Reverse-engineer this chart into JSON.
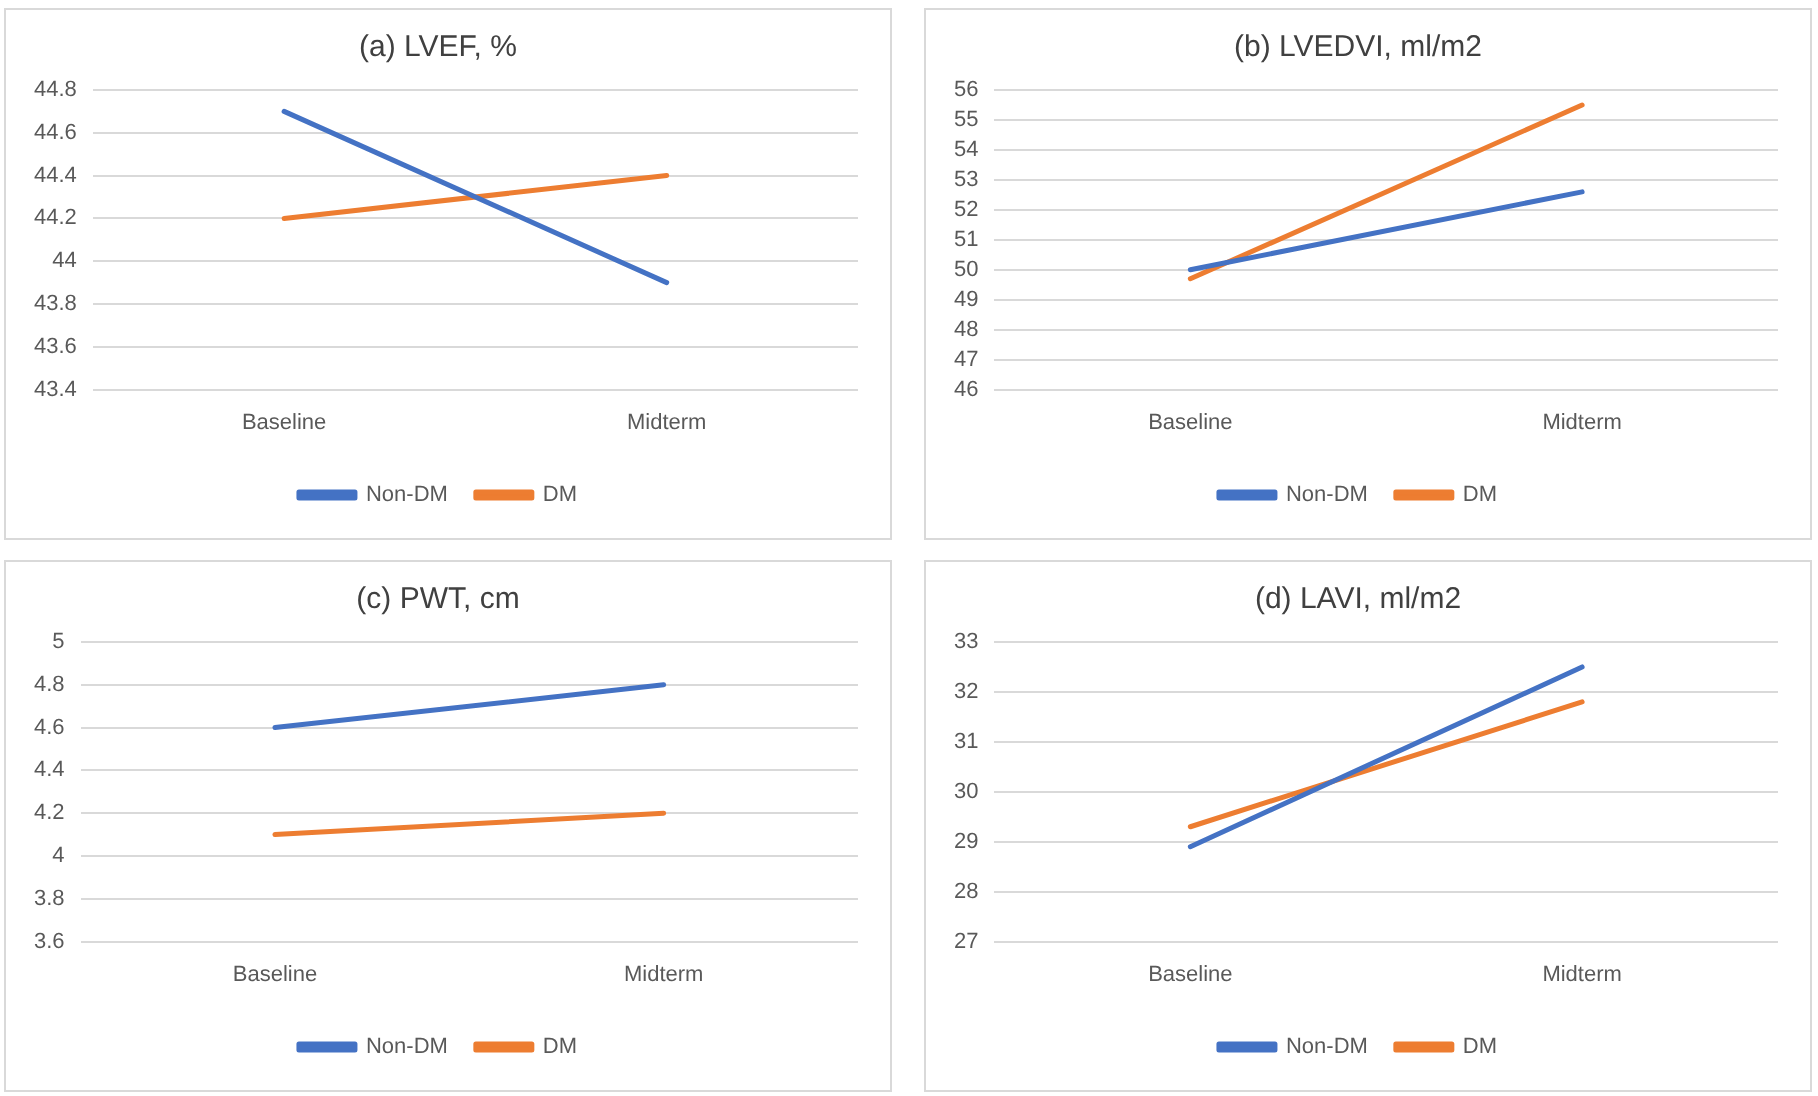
{
  "chart_data": [
    {
      "type": "line",
      "title": "(a) LVEF, %",
      "categories": [
        "Baseline",
        "Midterm"
      ],
      "series": [
        {
          "name": "Non-DM",
          "color": "#4472c4",
          "values": [
            44.7,
            43.9
          ]
        },
        {
          "name": "DM",
          "color": "#ed7d31",
          "values": [
            44.2,
            44.4
          ]
        }
      ],
      "ylim": [
        43.4,
        44.8
      ],
      "yticks": [
        43.4,
        43.6,
        43.8,
        44,
        44.2,
        44.4,
        44.6,
        44.8
      ],
      "grid": "y",
      "legend": "bottom",
      "marker": "none",
      "line_style": "solid"
    },
    {
      "type": "line",
      "title": "(b) LVEDVI, ml/m2",
      "categories": [
        "Baseline",
        "Midterm"
      ],
      "series": [
        {
          "name": "Non-DM",
          "color": "#4472c4",
          "values": [
            50,
            52.6
          ]
        },
        {
          "name": "DM",
          "color": "#ed7d31",
          "values": [
            49.7,
            55.5
          ]
        }
      ],
      "ylim": [
        46,
        56
      ],
      "yticks": [
        46,
        47,
        48,
        49,
        50,
        51,
        52,
        53,
        54,
        55,
        56
      ],
      "grid": "y",
      "legend": "bottom",
      "marker": "none",
      "line_style": "solid"
    },
    {
      "type": "line",
      "title": "(c) PWT, cm",
      "categories": [
        "Baseline",
        "Midterm"
      ],
      "series": [
        {
          "name": "Non-DM",
          "color": "#4472c4",
          "values": [
            4.6,
            4.8
          ]
        },
        {
          "name": "DM",
          "color": "#ed7d31",
          "values": [
            4.1,
            4.2
          ]
        }
      ],
      "ylim": [
        3.6,
        5
      ],
      "yticks": [
        3.6,
        3.8,
        4,
        4.2,
        4.4,
        4.6,
        4.8,
        5
      ],
      "grid": "y",
      "legend": "bottom",
      "marker": "none",
      "line_style": "solid"
    },
    {
      "type": "line",
      "title": "(d) LAVI, ml/m2",
      "categories": [
        "Baseline",
        "Midterm"
      ],
      "series": [
        {
          "name": "Non-DM",
          "color": "#4472c4",
          "values": [
            28.9,
            32.5
          ]
        },
        {
          "name": "DM",
          "color": "#ed7d31",
          "values": [
            29.3,
            31.8
          ]
        }
      ],
      "ylim": [
        27,
        33
      ],
      "yticks": [
        27,
        28,
        29,
        30,
        31,
        32,
        33
      ],
      "grid": "y",
      "legend": "bottom",
      "marker": "none",
      "line_style": "solid"
    }
  ]
}
